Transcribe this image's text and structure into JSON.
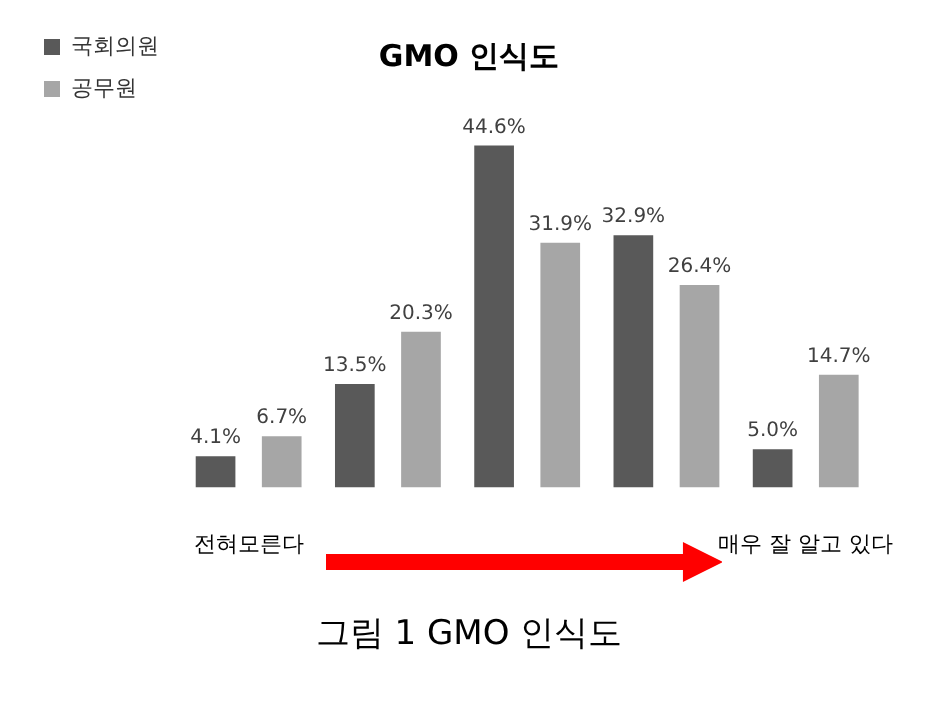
{
  "chart_data": {
    "type": "bar",
    "title": "GMO 인식도",
    "categories": [
      "전혀모른다",
      null,
      null,
      null,
      "매우 잘 알고 있다"
    ],
    "series": [
      {
        "name": "국회의원",
        "color": "#595959",
        "values": [
          4.1,
          13.5,
          44.6,
          32.9,
          5.0
        ],
        "value_labels": [
          "4.1%",
          "13.5%",
          "44.6%",
          "32.9%",
          "5.0%"
        ]
      },
      {
        "name": "공무원",
        "color": "#a6a6a6",
        "values": [
          6.7,
          20.3,
          31.9,
          26.4,
          14.7
        ],
        "value_labels": [
          "6.7%",
          "20.3%",
          "31.9%",
          "26.4%",
          "14.7%"
        ]
      }
    ],
    "tick_labels": "x",
    "legend": "top left",
    "grid": false,
    "annotations": [
      "그림 1 GMO 인식도"
    ]
  }
}
